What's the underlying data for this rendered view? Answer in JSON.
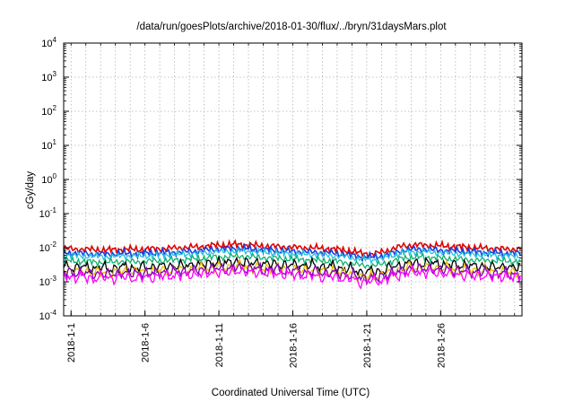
{
  "chart_data": {
    "type": "line",
    "title": "/data/run/goesPlots/archive/2018-01-30/flux/../bryn/31daysMars.plot",
    "xlabel": "Coordinated Universal Time (UTC)",
    "ylabel": "cGy/day",
    "yscale": "log",
    "ylim": [
      0.0001,
      10000
    ],
    "y_ticks": [
      {
        "value": 0.0001,
        "base": "10",
        "exp": "-4"
      },
      {
        "value": 0.001,
        "base": "10",
        "exp": "-3"
      },
      {
        "value": 0.01,
        "base": "10",
        "exp": "-2"
      },
      {
        "value": 0.1,
        "base": "10",
        "exp": "-1"
      },
      {
        "value": 1,
        "base": "10",
        "exp": "0"
      },
      {
        "value": 10,
        "base": "10",
        "exp": "1"
      },
      {
        "value": 100,
        "base": "10",
        "exp": "2"
      },
      {
        "value": 1000,
        "base": "10",
        "exp": "3"
      },
      {
        "value": 10000,
        "base": "10",
        "exp": "4"
      }
    ],
    "x_range_days": [
      "2018-01-01",
      "2018-01-31"
    ],
    "x_tick_labels": [
      "2018-1-1",
      "2018-1-6",
      "2018-1-11",
      "2018-1-16",
      "2018-1-21",
      "2018-1-26"
    ],
    "grid": true,
    "x_day_gridlines": true,
    "days": [
      "2018-01-01",
      "2018-01-02",
      "2018-01-03",
      "2018-01-04",
      "2018-01-05",
      "2018-01-06",
      "2018-01-07",
      "2018-01-08",
      "2018-01-09",
      "2018-01-10",
      "2018-01-11",
      "2018-01-12",
      "2018-01-13",
      "2018-01-14",
      "2018-01-15",
      "2018-01-16",
      "2018-01-17",
      "2018-01-18",
      "2018-01-19",
      "2018-01-20",
      "2018-01-21",
      "2018-01-22",
      "2018-01-23",
      "2018-01-24",
      "2018-01-25",
      "2018-01-26",
      "2018-01-27",
      "2018-01-28",
      "2018-01-29",
      "2018-01-30",
      "2018-01-31"
    ],
    "series": [
      {
        "color": "#e00000",
        "values": [
          0.0095,
          0.009,
          0.0088,
          0.0085,
          0.009,
          0.0088,
          0.0092,
          0.0095,
          0.01,
          0.0105,
          0.0115,
          0.012,
          0.0125,
          0.0115,
          0.011,
          0.0105,
          0.01,
          0.0098,
          0.0092,
          0.0085,
          0.007,
          0.0065,
          0.0085,
          0.0115,
          0.012,
          0.0115,
          0.011,
          0.0105,
          0.0098,
          0.0095,
          0.009
        ]
      },
      {
        "color": "#1a3fe0",
        "values": [
          0.0072,
          0.0068,
          0.0066,
          0.0064,
          0.0068,
          0.0066,
          0.007,
          0.0072,
          0.0075,
          0.008,
          0.0088,
          0.0092,
          0.0095,
          0.0088,
          0.0084,
          0.008,
          0.0076,
          0.0074,
          0.007,
          0.0064,
          0.0055,
          0.0052,
          0.0064,
          0.0085,
          0.009,
          0.0086,
          0.0082,
          0.0078,
          0.0074,
          0.0072,
          0.0068
        ]
      },
      {
        "color": "#22c0e0",
        "values": [
          0.0062,
          0.0058,
          0.0056,
          0.0054,
          0.0058,
          0.0056,
          0.006,
          0.0062,
          0.0064,
          0.0068,
          0.0075,
          0.0078,
          0.008,
          0.0075,
          0.0072,
          0.0068,
          0.0065,
          0.0063,
          0.006,
          0.0055,
          0.0047,
          0.0044,
          0.0055,
          0.0072,
          0.0076,
          0.0073,
          0.007,
          0.0066,
          0.0063,
          0.0061,
          0.0058
        ]
      },
      {
        "color": "#10b070",
        "values": [
          0.0042,
          0.004,
          0.0038,
          0.0037,
          0.004,
          0.0038,
          0.0041,
          0.0042,
          0.0044,
          0.0047,
          0.0052,
          0.0054,
          0.0056,
          0.0052,
          0.005,
          0.0047,
          0.0045,
          0.0043,
          0.0041,
          0.0037,
          0.0031,
          0.0029,
          0.0037,
          0.005,
          0.0053,
          0.0051,
          0.0048,
          0.0045,
          0.0043,
          0.0042,
          0.004
        ]
      },
      {
        "color": "#000000",
        "values": [
          0.0031,
          0.0029,
          0.0028,
          0.0027,
          0.0029,
          0.0028,
          0.003,
          0.0031,
          0.0032,
          0.0034,
          0.0038,
          0.004,
          0.0041,
          0.0038,
          0.0036,
          0.0034,
          0.0033,
          0.0032,
          0.003,
          0.0027,
          0.0022,
          0.0021,
          0.0027,
          0.0036,
          0.0039,
          0.0037,
          0.0035,
          0.0033,
          0.0031,
          0.003,
          0.0029
        ]
      },
      {
        "color": "#e8c000",
        "values": [
          0.0023,
          0.0022,
          0.0021,
          0.002,
          0.0022,
          0.0021,
          0.0022,
          0.0023,
          0.0024,
          0.0026,
          0.0028,
          0.003,
          0.0031,
          0.0028,
          0.0027,
          0.0026,
          0.0024,
          0.0023,
          0.0022,
          0.002,
          0.0016,
          0.0015,
          0.002,
          0.0027,
          0.0029,
          0.0028,
          0.0026,
          0.0025,
          0.0023,
          0.0022,
          0.0021
        ]
      },
      {
        "color": "#8000c0",
        "values": [
          0.0021,
          0.002,
          0.0019,
          0.0018,
          0.002,
          0.0019,
          0.002,
          0.0021,
          0.0022,
          0.0024,
          0.0026,
          0.0027,
          0.0028,
          0.0026,
          0.0025,
          0.0024,
          0.0022,
          0.0021,
          0.002,
          0.0018,
          0.0015,
          0.0014,
          0.0018,
          0.0025,
          0.0027,
          0.0026,
          0.0024,
          0.0023,
          0.0021,
          0.002,
          0.0019
        ]
      },
      {
        "color": "#ff00ff",
        "values": [
          0.0016,
          0.0015,
          0.0014,
          0.0014,
          0.0015,
          0.0014,
          0.0015,
          0.0016,
          0.0017,
          0.0018,
          0.002,
          0.0021,
          0.0022,
          0.002,
          0.0019,
          0.0018,
          0.0017,
          0.0016,
          0.0015,
          0.0014,
          0.0011,
          0.0011,
          0.0014,
          0.0019,
          0.0021,
          0.002,
          0.0019,
          0.0017,
          0.0016,
          0.0016,
          0.0015
        ]
      }
    ]
  }
}
